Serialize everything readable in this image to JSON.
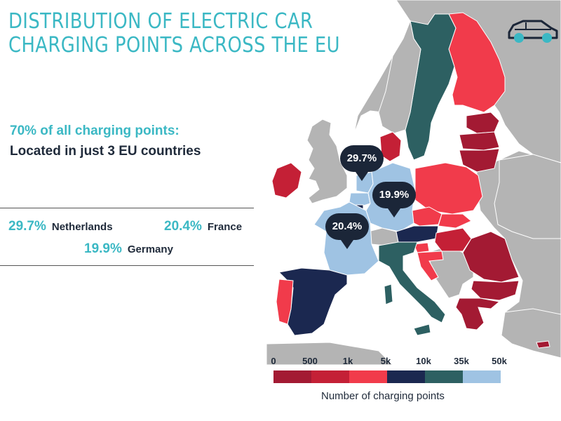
{
  "title_lines": [
    "DISTRIBUTION OF ELECTRIC CAR",
    "CHARGING POINTS ACROSS THE EU"
  ],
  "subheading": "70% of all charging points:",
  "subline": "Located in just 3 EU countries",
  "stats": [
    {
      "pct": "29.7%",
      "country": "Netherlands"
    },
    {
      "pct": "20.4%",
      "country": "France"
    },
    {
      "pct": "19.9%",
      "country": "Germany"
    }
  ],
  "callouts": [
    {
      "label": "29.7%",
      "country": "Netherlands"
    },
    {
      "label": "19.9%",
      "country": "Germany"
    },
    {
      "label": "20.4%",
      "country": "France"
    }
  ],
  "legend": {
    "ticks": [
      "0",
      "500",
      "1k",
      "5k",
      "10k",
      "35k",
      "50k"
    ],
    "label": "Number of charging points",
    "colors": [
      "#a31a33",
      "#c42036",
      "#f13b4b",
      "#1b2850",
      "#2d6062",
      "#9fc3e3"
    ]
  },
  "colors": {
    "accent": "#3bb8c4",
    "non_eu": "#b4b4b4",
    "sea": "#ffffff",
    "callout": "#1b2638",
    "icon": "#3bb8c4"
  },
  "map_legend_classes": {
    "0-500": [
      "Lithuania",
      "Latvia",
      "Estonia",
      "Poland",
      "Romania",
      "Bulgaria",
      "Greece",
      "Hungary"
    ],
    "500-1k": [
      "Denmark"
    ],
    "1k-5k": [
      "Finland",
      "Ireland",
      "Portugal",
      "Czech Republic",
      "Croatia",
      "Slovakia",
      "Slovenia"
    ],
    "5k-10k": [
      "Spain",
      "Austria",
      "Luxembourg"
    ],
    "10k-35k": [
      "Sweden",
      "Italy"
    ],
    "35k-50k": [
      "Netherlands",
      "Germany",
      "France",
      "Belgium"
    ]
  },
  "icons": {
    "top_right": "car-icon"
  }
}
